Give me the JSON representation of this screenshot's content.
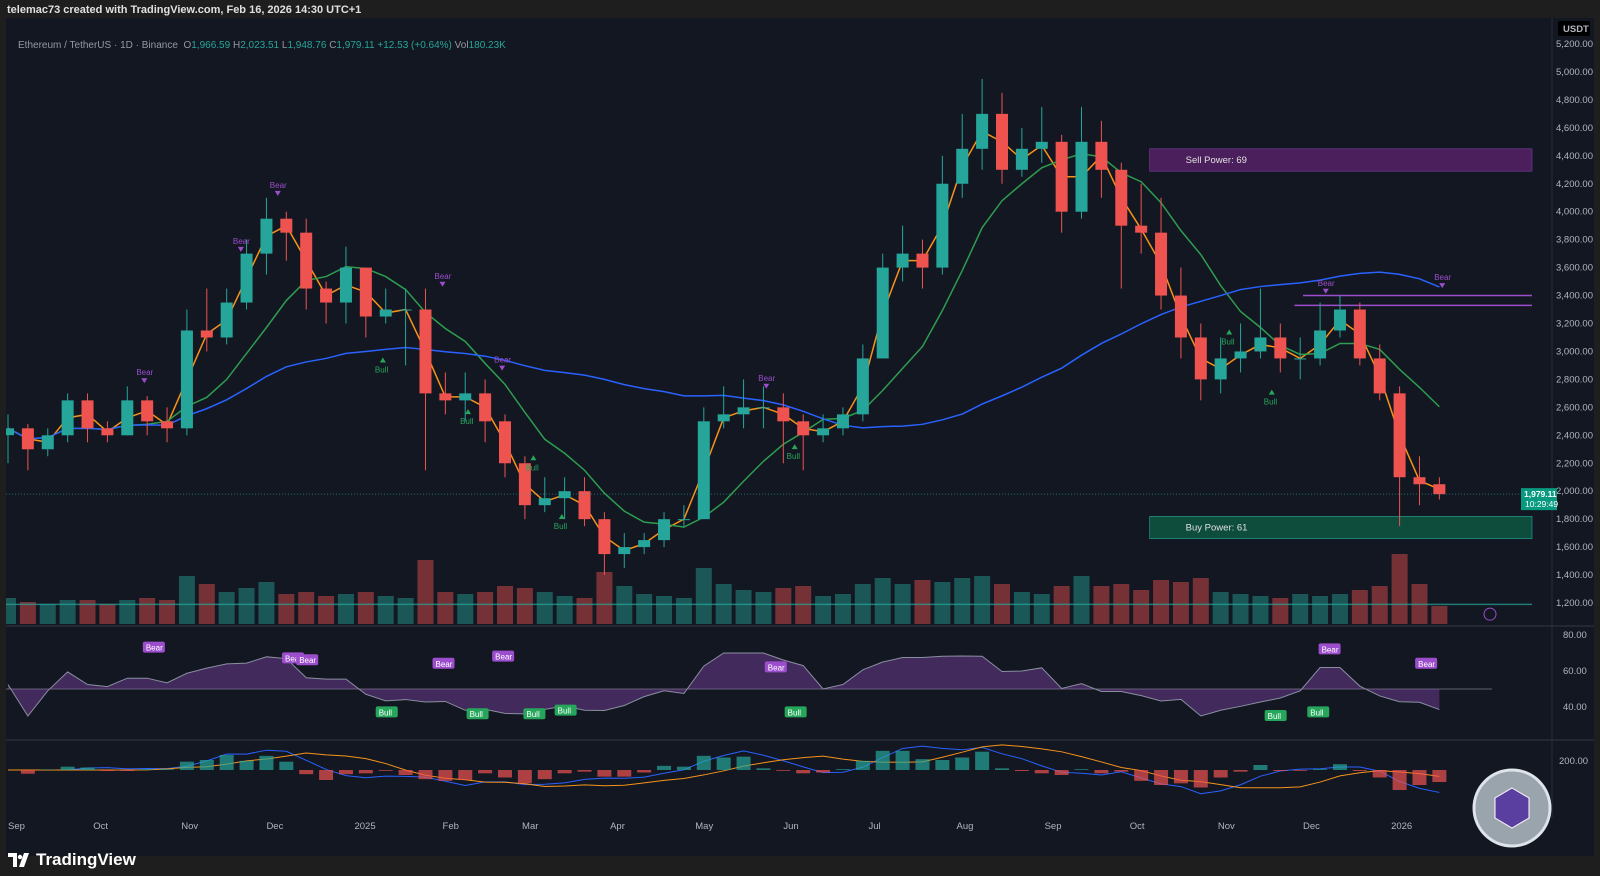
{
  "header": {
    "attribution": "telemac73 created with TradingView.com, Feb 16, 2026 14:30 UTC+1"
  },
  "legend": {
    "symbol": "Ethereum / TetherUS · 1D · Binance",
    "o_label": "O",
    "o": "1,966.59",
    "h_label": "H",
    "h": "2,023.51",
    "l_label": "L",
    "l": "1,948.76",
    "c_label": "C",
    "c": "1,979.11",
    "change": "+12.53 (+0.64%)",
    "vol_label": "Vol",
    "vol": "180.23K"
  },
  "price_axis": {
    "currency": "USDT",
    "last_price": "1,979.11",
    "countdown": "10:29:49"
  },
  "footer": {
    "brand": "TradingView"
  },
  "colors": {
    "up": "#26a69a",
    "down": "#ef5350",
    "ema_fast": "#f7931a",
    "ma_mid": "#2e9d4f",
    "ma_slow": "#2962ff",
    "bear": "#9c4dcc",
    "bull": "#26a65b",
    "sell_box": "#4a1f5c",
    "buy_box": "#0e4d3c"
  },
  "chart_data": [
    {
      "type": "candlestick",
      "title": "",
      "interval_shown": "weekly approximation of daily candles",
      "ylim": [
        1000,
        5300
      ],
      "y_ticks": [
        "5,200.00",
        "5,000.00",
        "4,800.00",
        "4,600.00",
        "4,400.00",
        "4,200.00",
        "4,000.00",
        "3,800.00",
        "3,600.00",
        "3,400.00",
        "3,200.00",
        "3,000.00",
        "2,800.00",
        "2,600.00",
        "2,400.00",
        "2,200.00",
        "2,000.00",
        "1,800.00",
        "1,600.00",
        "1,400.00",
        "1,200.00"
      ],
      "x_ticks": [
        {
          "label": "Sep",
          "date": "2024-09-01"
        },
        {
          "label": "Oct",
          "date": "2024-10-01"
        },
        {
          "label": "Nov",
          "date": "2024-11-01"
        },
        {
          "label": "Dec",
          "date": "2024-12-01"
        },
        {
          "label": "2025",
          "date": "2025-01-01"
        },
        {
          "label": "Feb",
          "date": "2025-02-01"
        },
        {
          "label": "Mar",
          "date": "2025-03-01"
        },
        {
          "label": "Apr",
          "date": "2025-04-01"
        },
        {
          "label": "May",
          "date": "2025-05-01"
        },
        {
          "label": "Jun",
          "date": "2025-06-01"
        },
        {
          "label": "Jul",
          "date": "2025-07-01"
        },
        {
          "label": "Aug",
          "date": "2025-08-01"
        },
        {
          "label": "Sep",
          "date": "2025-09-01"
        },
        {
          "label": "Oct",
          "date": "2025-10-01"
        },
        {
          "label": "Nov",
          "date": "2025-11-01"
        },
        {
          "label": "Dec",
          "date": "2025-12-01"
        },
        {
          "label": "2026",
          "date": "2026-01-01"
        },
        {
          "label": "Feb",
          "date": "2026-02-01"
        }
      ],
      "start_date": "2024-09-01",
      "close": [
        2450,
        2300,
        2400,
        2650,
        2450,
        2400,
        2650,
        2500,
        2450,
        3150,
        3100,
        3350,
        3700,
        3950,
        3850,
        3450,
        3350,
        3600,
        3250,
        3300,
        3300,
        2700,
        2650,
        2700,
        2500,
        2200,
        1900,
        1950,
        2000,
        1800,
        1550,
        1600,
        1650,
        1800,
        1800,
        2500,
        2550,
        2600,
        2600,
        2500,
        2400,
        2450,
        2550,
        2950,
        3600,
        3700,
        3600,
        4200,
        4450,
        4700,
        4300,
        4450,
        4500,
        4000,
        4500,
        4300,
        3900,
        3850,
        3400,
        3100,
        2800,
        2950,
        3000,
        3100,
        2950,
        2950,
        3150,
        3300,
        2950,
        2700,
        2100,
        2050,
        1979
      ],
      "high": [
        2550,
        2480,
        2450,
        2700,
        2700,
        2500,
        2750,
        2680,
        2600,
        3300,
        3450,
        3450,
        3800,
        4100,
        4000,
        3950,
        3500,
        3750,
        3600,
        3450,
        3450,
        3450,
        2850,
        2850,
        2800,
        2550,
        2250,
        2100,
        2100,
        2100,
        1850,
        1700,
        1700,
        1850,
        1900,
        2600,
        2750,
        2800,
        2750,
        2700,
        2550,
        2550,
        2600,
        3050,
        3700,
        3900,
        3800,
        4400,
        4700,
        4950,
        4850,
        4600,
        4750,
        4550,
        4750,
        4650,
        4350,
        4200,
        4100,
        3600,
        3200,
        3100,
        3200,
        3450,
        3200,
        3100,
        3350,
        3400,
        3350,
        3050,
        2750,
        2250,
        2100
      ],
      "low": [
        2200,
        2150,
        2250,
        2350,
        2350,
        2350,
        2400,
        2400,
        2350,
        2400,
        3000,
        3050,
        3300,
        3550,
        3650,
        3300,
        3200,
        3200,
        3100,
        3200,
        2900,
        2150,
        2550,
        2500,
        2350,
        2100,
        1800,
        1850,
        1800,
        1750,
        1400,
        1450,
        1550,
        1600,
        1750,
        1800,
        2450,
        2450,
        2450,
        2200,
        2150,
        2350,
        2400,
        2500,
        2950,
        3500,
        3450,
        3550,
        4100,
        4300,
        4200,
        4250,
        4350,
        3850,
        3950,
        4100,
        3450,
        3700,
        3300,
        2950,
        2650,
        2700,
        2850,
        2950,
        2850,
        2800,
        2900,
        3100,
        2900,
        2650,
        1750,
        1900,
        1940
      ],
      "volume": [
        1.3,
        1.1,
        1.0,
        1.2,
        1.2,
        1.0,
        1.2,
        1.3,
        1.2,
        2.4,
        2.0,
        1.6,
        1.8,
        2.1,
        1.5,
        1.6,
        1.4,
        1.5,
        1.6,
        1.4,
        1.3,
        3.2,
        1.6,
        1.5,
        1.6,
        1.9,
        1.8,
        1.6,
        1.4,
        1.3,
        2.6,
        1.9,
        1.5,
        1.4,
        1.3,
        2.8,
        2.0,
        1.7,
        1.6,
        1.8,
        1.9,
        1.4,
        1.5,
        2.0,
        2.3,
        2.0,
        2.2,
        2.1,
        2.3,
        2.4,
        2.0,
        1.6,
        1.5,
        1.9,
        2.4,
        1.9,
        2.0,
        1.7,
        2.2,
        2.1,
        2.3,
        1.6,
        1.5,
        1.4,
        1.3,
        1.5,
        1.4,
        1.5,
        1.7,
        1.9,
        3.5,
        2.0,
        0.9
      ],
      "zones": [
        {
          "label": "Sell Power: 69",
          "from_date": "2025-10-08",
          "top": 4450,
          "bottom": 4290,
          "kind": "sell"
        },
        {
          "label": "Buy Power: 61",
          "from_date": "2025-10-08",
          "top": 1820,
          "bottom": 1660,
          "kind": "buy"
        }
      ],
      "resistance_lines": [
        {
          "from_date": "2025-12-01",
          "price": 3400
        },
        {
          "from_date": "2025-11-28",
          "price": 3330
        }
      ],
      "signals": [
        {
          "label": "Bear",
          "date": "2024-10-19",
          "price": 2780
        },
        {
          "label": "Bear",
          "date": "2024-11-22",
          "price": 3720
        },
        {
          "label": "Bear",
          "date": "2024-12-05",
          "price": 4120
        },
        {
          "label": "Bull",
          "date": "2025-01-11",
          "price": 2950
        },
        {
          "label": "Bear",
          "date": "2025-02-01",
          "price": 3470
        },
        {
          "label": "Bull",
          "date": "2025-02-10",
          "price": 2580
        },
        {
          "label": "Bear",
          "date": "2025-02-22",
          "price": 2870
        },
        {
          "label": "Bull",
          "date": "2025-03-05",
          "price": 2250
        },
        {
          "label": "Bull",
          "date": "2025-03-15",
          "price": 1830
        },
        {
          "label": "Bear",
          "date": "2025-05-26",
          "price": 2740
        },
        {
          "label": "Bull",
          "date": "2025-06-05",
          "price": 2330
        },
        {
          "label": "Bull",
          "date": "2025-11-05",
          "price": 3150
        },
        {
          "label": "Bull",
          "date": "2025-11-20",
          "price": 2720
        },
        {
          "label": "Bear",
          "date": "2025-12-09",
          "price": 3420
        },
        {
          "label": "Bear",
          "date": "2026-01-19",
          "price": 3460
        }
      ]
    },
    {
      "type": "line",
      "title": "",
      "y_ticks": [
        "80.00",
        "60.00",
        "40.00"
      ],
      "ylim": [
        25,
        85
      ],
      "signals": [
        {
          "label": "Bear",
          "date": "2024-10-22",
          "value": 73
        },
        {
          "label": "Bear",
          "date": "2024-12-10",
          "value": 67
        },
        {
          "label": "Bear",
          "date": "2024-12-15",
          "value": 66
        },
        {
          "label": "Bull",
          "date": "2025-01-12",
          "value": 37
        },
        {
          "label": "Bear",
          "date": "2025-02-01",
          "value": 64
        },
        {
          "label": "Bear",
          "date": "2025-02-22",
          "value": 68
        },
        {
          "label": "Bull",
          "date": "2025-02-13",
          "value": 36
        },
        {
          "label": "Bull",
          "date": "2025-03-05",
          "value": 36
        },
        {
          "label": "Bull",
          "date": "2025-03-16",
          "value": 38
        },
        {
          "label": "Bear",
          "date": "2025-05-29",
          "value": 62
        },
        {
          "label": "Bull",
          "date": "2025-06-05",
          "value": 37
        },
        {
          "label": "Bull",
          "date": "2025-11-21",
          "value": 35
        },
        {
          "label": "Bull",
          "date": "2025-12-06",
          "value": 37
        },
        {
          "label": "Bear",
          "date": "2025-12-10",
          "value": 72
        },
        {
          "label": "Bear",
          "date": "2026-01-13",
          "value": 64
        }
      ]
    },
    {
      "type": "line",
      "title": "",
      "y_ticks": [
        "200.00"
      ]
    }
  ]
}
